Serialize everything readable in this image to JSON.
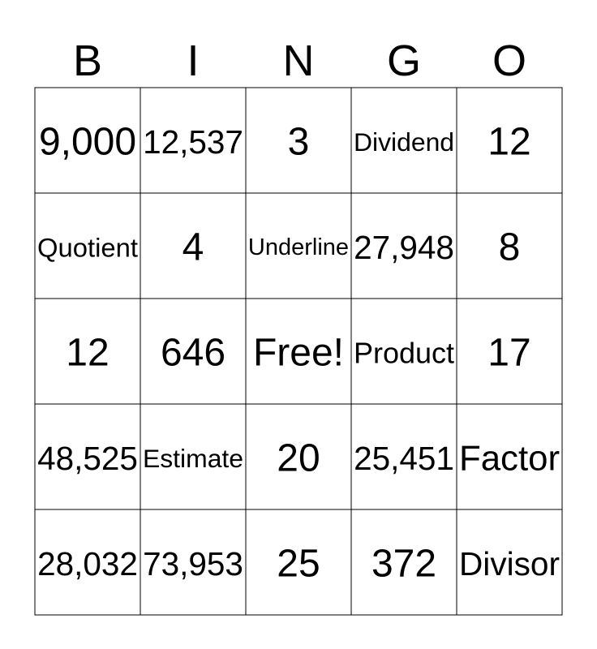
{
  "header": {
    "letters": [
      "B",
      "I",
      "N",
      "G",
      "O"
    ]
  },
  "grid": {
    "rows": [
      [
        "9,000",
        "12,537",
        "3",
        "Dividend",
        "12"
      ],
      [
        "Quotient",
        "4",
        "Underline",
        "27,948",
        "8"
      ],
      [
        "12",
        "646",
        "Free!",
        "Product",
        "17"
      ],
      [
        "48,525",
        "Estimate",
        "20",
        "25,451",
        "Factor"
      ],
      [
        "28,032",
        "73,953",
        "25",
        "372",
        "Divisor"
      ]
    ]
  }
}
